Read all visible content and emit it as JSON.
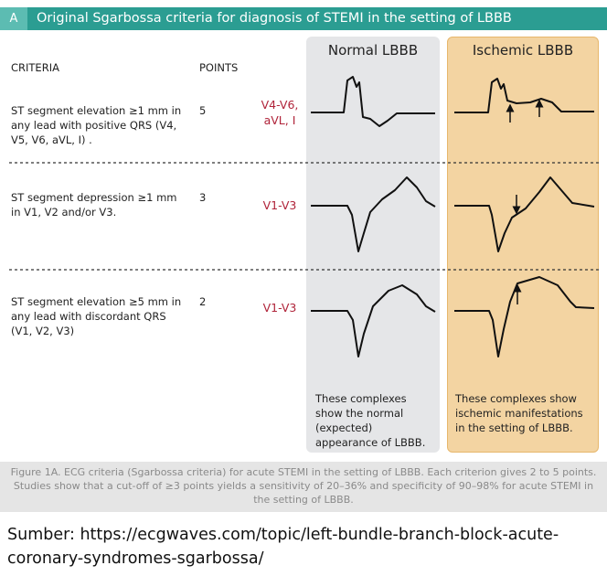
{
  "header": {
    "label": "A",
    "title": "Original Sgarbossa criteria for diagnosis of STEMI in the setting of LBBB"
  },
  "columns": {
    "criteria": "CRITERIA",
    "points": "POINTS",
    "normal": "Normal LBBB",
    "ischemic": "Ischemic LBBB"
  },
  "rows": [
    {
      "criterion": "ST segment elevation ≥1 mm in any lead with positive QRS (V4, V5, V6, aVL, I) .",
      "points": 5,
      "leads": "V4-V6, aVL, I"
    },
    {
      "criterion": "ST segment depression ≥1 mm in V1, V2 and/or V3.",
      "points": 3,
      "leads": "V1-V3"
    },
    {
      "criterion": "ST segment elevation ≥5 mm in any lead with discordant QRS (V1, V2, V3)",
      "points": 2,
      "leads": "V1-V3"
    }
  ],
  "notes": {
    "normal": "These complexes show the normal (expected) appearance of LBBB.",
    "ischemic": "These complexes show ischemic manifestations in the setting of LBBB."
  },
  "caption": "Figure 1A. ECG criteria (Sgarbossa criteria) for acute STEMI in the setting of LBBB. Each criterion gives 2 to 5 points. Studies show that a cut-off of ≥3 points yields a sensitivity of 20–36% and specificity of 90–98% for acute STEMI in the setting of LBBB.",
  "source": "Sumber: https://ecgwaves.com/topic/left-bundle-branch-block-acute-coronary-syndromes-sgarbossa/"
}
